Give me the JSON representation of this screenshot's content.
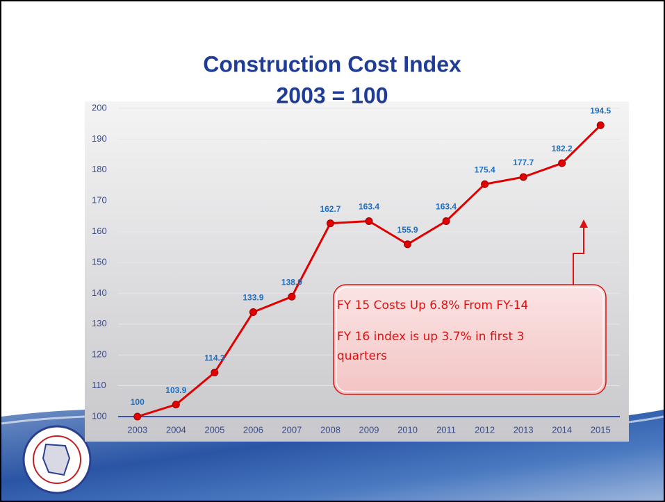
{
  "chart_data": {
    "type": "line",
    "title": "Construction Cost Index",
    "subtitle": "2003 = 100",
    "categories": [
      "2003",
      "2004",
      "2005",
      "2006",
      "2007",
      "2008",
      "2009",
      "2010",
      "2011",
      "2012",
      "2013",
      "2014",
      "2015"
    ],
    "series": [
      {
        "name": "Construction Cost Index",
        "color": "#e00000",
        "values": [
          100,
          103.9,
          114.3,
          133.9,
          138.9,
          162.7,
          163.4,
          155.9,
          163.4,
          175.4,
          177.7,
          182.2,
          194.5
        ]
      }
    ],
    "ylim": [
      100,
      200
    ],
    "yticks": [
      100,
      110,
      120,
      130,
      140,
      150,
      160,
      170,
      180,
      190,
      200
    ],
    "grid": true,
    "annotations": [
      "FY 15 Costs Up 6.8% From FY-14",
      "FY 16 index is up 3.7% in first 3",
      "quarters"
    ]
  }
}
